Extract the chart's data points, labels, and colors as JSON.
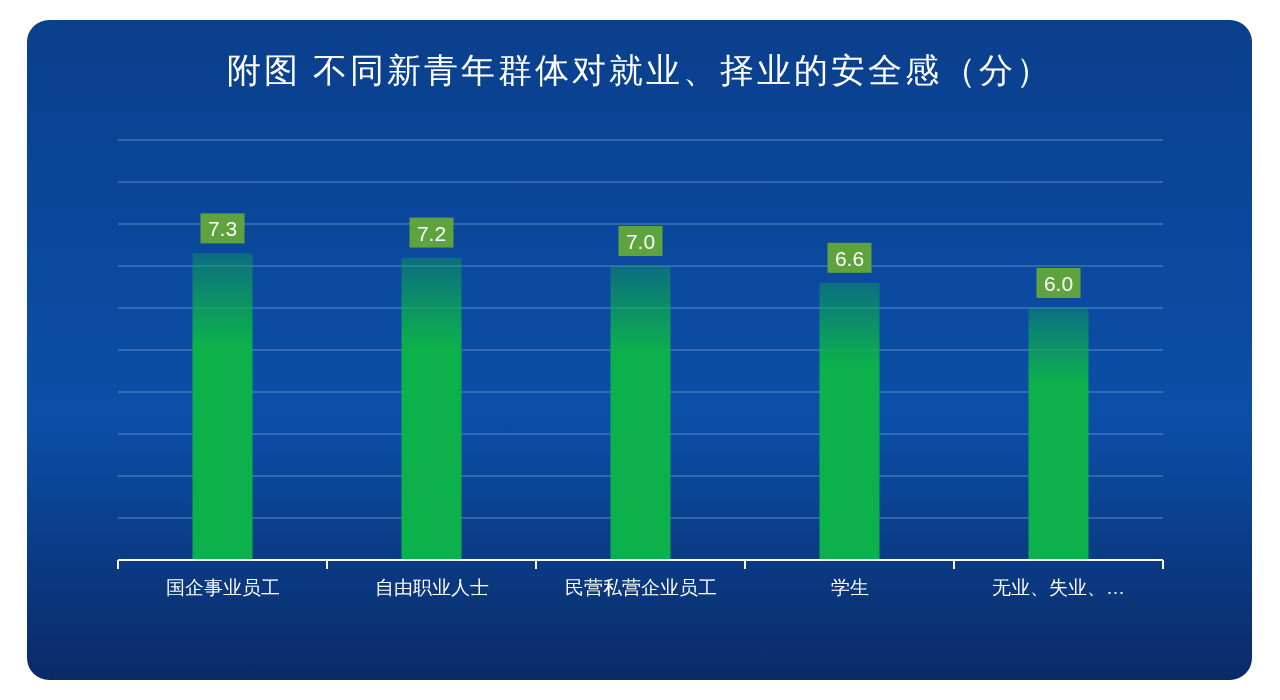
{
  "chart_data": {
    "type": "bar",
    "title": "附图 不同新青年群体对就业、择业的安全感（分）",
    "categories": [
      "国企事业员工",
      "自由职业人士",
      "民营私营企业员工",
      "学生",
      "无业、失业、…"
    ],
    "values": [
      7.3,
      7.2,
      7.0,
      6.6,
      6.0
    ],
    "color": "#0db14b",
    "ylim": [
      0,
      10
    ],
    "yticks": [
      {
        "value": 0,
        "label": null
      },
      {
        "value": 1,
        "label": null
      },
      {
        "value": 2,
        "label": null
      },
      {
        "value": 3,
        "label": null
      },
      {
        "value": 4,
        "label": null
      },
      {
        "value": 5,
        "label": null
      },
      {
        "value": 6,
        "label": null
      },
      {
        "value": 7,
        "label": null
      },
      {
        "value": 8,
        "label": null
      },
      {
        "value": 9,
        "label": null
      },
      {
        "value": 10,
        "label": null
      }
    ],
    "grid": "y",
    "value_labels": [
      "7.3",
      "7.2",
      "7.0",
      "6.6",
      "6.0"
    ]
  }
}
